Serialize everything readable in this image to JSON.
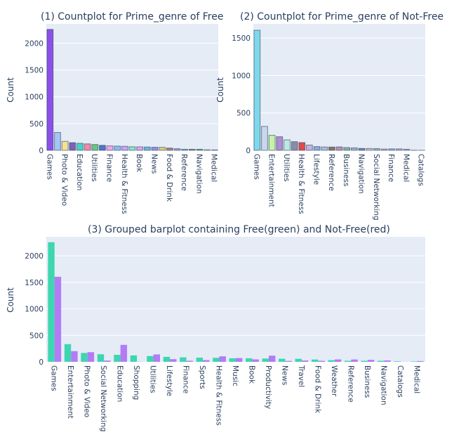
{
  "chart_data": [
    {
      "type": "bar",
      "title": "(1) Countplot for Prime_genre of Free",
      "ylabel": "Count",
      "ylim": [
        0,
        2360
      ],
      "yticks": [
        0,
        500,
        1000,
        1500,
        2000
      ],
      "categories": [
        "Games",
        "Entertainment",
        "Photo & Video",
        "Social Networking",
        "Education",
        "Shopping",
        "Utilities",
        "Lifestyle",
        "Finance",
        "Sports",
        "Health & Fitness",
        "Music",
        "Book",
        "Productivity",
        "News",
        "Travel",
        "Food & Drink",
        "Weather",
        "Reference",
        "Business",
        "Navigation",
        "Catalogs",
        "Medical"
      ],
      "shown_tick_labels": [
        "Games",
        "Photo & Video",
        "Education",
        "Utilities",
        "Finance",
        "Health & Fitness",
        "Book",
        "News",
        "Food & Drink",
        "Reference",
        "Navigation",
        "Medical"
      ],
      "values": [
        2257,
        334,
        167,
        143,
        132,
        121,
        109,
        94,
        84,
        79,
        76,
        67,
        66,
        62,
        58,
        56,
        43,
        31,
        20,
        20,
        20,
        10,
        8
      ],
      "colors": [
        "#8b50e8",
        "#a5c6f2",
        "#f2e291",
        "#7d62b8",
        "#48d3c4",
        "#ef8aa8",
        "#69c77d",
        "#5572c8",
        "#f2a7e8",
        "#87bdf5",
        "#c9a6f8",
        "#89e5c4",
        "#d8a6f0",
        "#6abad8",
        "#9a8cf2",
        "#d6d46d",
        "#b08472",
        "#a89be6",
        "#6fb8a8",
        "#7f8c8d",
        "#4cb5a0",
        "#b6d47a",
        "#c58ce8"
      ]
    },
    {
      "type": "bar",
      "title": "(2) Countplot for Prime_genre of Not-Free",
      "ylabel": "Count",
      "ylim": [
        0,
        1690
      ],
      "yticks": [
        0,
        500,
        1000,
        1500
      ],
      "categories": [
        "Games",
        "Education",
        "Entertainment",
        "Photo & Video",
        "Utilities",
        "Productivity",
        "Health & Fitness",
        "Music",
        "Lifestyle",
        "Weather",
        "Reference",
        "Book",
        "Business",
        "Sports",
        "Navigation",
        "Travel",
        "Social Networking",
        "News",
        "Finance",
        "Food & Drink",
        "Medical",
        "Shopping",
        "Catalogs"
      ],
      "shown_tick_labels": [
        "Games",
        "Entertainment",
        "Utilities",
        "Health & Fitness",
        "Lifestyle",
        "Reference",
        "Business",
        "Navigation",
        "Social Networking",
        "Finance",
        "Medical",
        "Catalogs"
      ],
      "values": [
        1605,
        320,
        201,
        182,
        140,
        116,
        104,
        71,
        50,
        45,
        44,
        46,
        37,
        33,
        26,
        25,
        24,
        17,
        20,
        20,
        15,
        2,
        1
      ],
      "colors": [
        "#7fd8ea",
        "#c8d7ea",
        "#c7f2a6",
        "#ad8cd0",
        "#bde8e2",
        "#8c8ca8",
        "#e04a4a",
        "#c5b2dd",
        "#8ea8da",
        "#a8c0e0",
        "#8f7268",
        "#b98fb0",
        "#8ab0a5",
        "#98b6cc",
        "#6d86b8",
        "#c6c6c6",
        "#a3b1c6",
        "#b8b8b8",
        "#9fb3e0",
        "#b6b6b6",
        "#aab6d0",
        "#c4c4c4",
        "#d0d0d0"
      ]
    },
    {
      "type": "bar",
      "title": "(3) Grouped barplot containing Free(green) and Not-Free(red)",
      "ylabel": "Count",
      "ylim": [
        0,
        2360
      ],
      "yticks": [
        0,
        500,
        1000,
        1500,
        2000
      ],
      "categories": [
        "Games",
        "Entertainment",
        "Photo & Video",
        "Social Networking",
        "Education",
        "Shopping",
        "Utilities",
        "Lifestyle",
        "Finance",
        "Sports",
        "Health & Fitness",
        "Music",
        "Book",
        "Productivity",
        "News",
        "Travel",
        "Food & Drink",
        "Weather",
        "Reference",
        "Business",
        "Navigation",
        "Catalogs",
        "Medical"
      ],
      "series": [
        {
          "color": "#3dd6b0",
          "values": [
            2257,
            334,
            167,
            143,
            132,
            121,
            109,
            94,
            84,
            79,
            76,
            67,
            66,
            62,
            58,
            56,
            43,
            31,
            20,
            20,
            20,
            10,
            8
          ]
        },
        {
          "color": "#b27cf6",
          "values": [
            1605,
            201,
            182,
            24,
            320,
            2,
            140,
            50,
            20,
            33,
            104,
            71,
            46,
            116,
            17,
            25,
            20,
            45,
            44,
            37,
            26,
            1,
            15
          ]
        }
      ]
    }
  ]
}
